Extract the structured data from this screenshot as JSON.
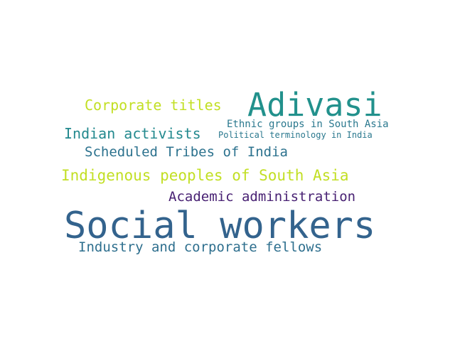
{
  "word_cloud": {
    "words": [
      {
        "id": "social",
        "text": "Social workers",
        "color": "#33638d"
      },
      {
        "id": "adivasi",
        "text": "Adivasi",
        "color": "#22918c"
      },
      {
        "id": "indigenous",
        "text": "Indigenous peoples of South Asia",
        "color": "#c2df23"
      },
      {
        "id": "corporate",
        "text": "Corporate titles",
        "color": "#c2df23"
      },
      {
        "id": "activists",
        "text": "Indian activists",
        "color": "#23898e"
      },
      {
        "id": "scheduled",
        "text": "Scheduled Tribes of India",
        "color": "#2c728e"
      },
      {
        "id": "academic",
        "text": "Academic administration",
        "color": "#482173"
      },
      {
        "id": "fellows",
        "text": "Industry and corporate fellows",
        "color": "#2e6f8e"
      },
      {
        "id": "ethnic",
        "text": "Ethnic groups in South Asia",
        "color": "#2a788e"
      },
      {
        "id": "political",
        "text": "Political terminology in India",
        "color": "#2a788e"
      }
    ]
  }
}
